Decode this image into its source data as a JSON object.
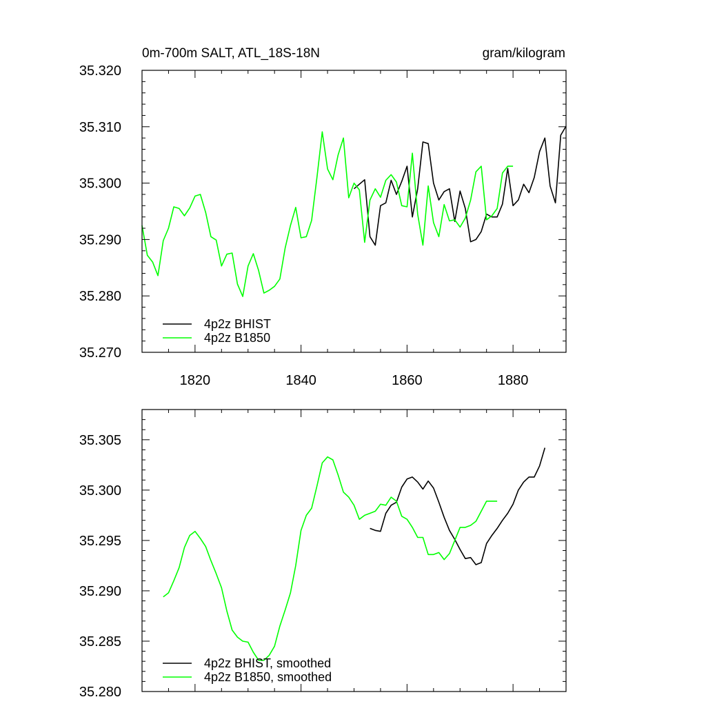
{
  "header": {
    "left": "0m-700m SALT, ATL_18S-18N",
    "right": "gram/kilogram"
  },
  "colors": {
    "bhist": "#000000",
    "b1850": "#00ff00",
    "axis": "#000000"
  },
  "chart_data": [
    {
      "type": "line",
      "title": "0m-700m SALT, ATL_18S-18N",
      "units": "gram/kilogram",
      "xlim": [
        1810,
        1890
      ],
      "ylim": [
        35.27,
        35.32
      ],
      "x_ticks": [
        1820,
        1840,
        1860,
        1880
      ],
      "x_tick_labels": [
        "1820",
        "1840",
        "1860",
        "1880"
      ],
      "y_ticks": [
        35.27,
        35.28,
        35.29,
        35.3,
        35.31,
        35.32
      ],
      "y_tick_labels": [
        "35.270",
        "35.280",
        "35.290",
        "35.300",
        "35.310",
        "35.320"
      ],
      "grid": false,
      "legend_position": "bottom-left",
      "series": [
        {
          "name": "4p2z BHIST",
          "color": "#000000",
          "x": [
            1850,
            1851,
            1852,
            1853,
            1854,
            1855,
            1856,
            1857,
            1858,
            1859,
            1860,
            1861,
            1862,
            1863,
            1864,
            1865,
            1866,
            1867,
            1868,
            1869,
            1870,
            1871,
            1872,
            1873,
            1874,
            1875,
            1876,
            1877,
            1878,
            1879,
            1880,
            1881,
            1882,
            1883,
            1884,
            1885,
            1886,
            1887,
            1888,
            1889,
            1890
          ],
          "y": [
            35.299,
            35.2998,
            35.3006,
            35.2905,
            35.289,
            35.296,
            35.2965,
            35.3005,
            35.298,
            35.3003,
            35.303,
            35.294,
            35.299,
            35.3073,
            35.307,
            35.3,
            35.297,
            35.2985,
            35.299,
            35.2932,
            35.2986,
            35.2955,
            35.2896,
            35.29,
            35.2914,
            35.2945,
            35.294,
            35.294,
            35.2963,
            35.3026,
            35.296,
            35.297,
            35.2998,
            35.2983,
            35.301,
            35.3056,
            35.308,
            35.2995,
            35.2965,
            35.3085,
            35.3101
          ]
        },
        {
          "name": "4p2z B1850",
          "color": "#00ff00",
          "x": [
            1810,
            1811,
            1812,
            1813,
            1814,
            1815,
            1816,
            1817,
            1818,
            1819,
            1820,
            1821,
            1822,
            1823,
            1824,
            1825,
            1826,
            1827,
            1828,
            1829,
            1830,
            1831,
            1832,
            1833,
            1834,
            1835,
            1836,
            1837,
            1838,
            1839,
            1840,
            1841,
            1842,
            1843,
            1844,
            1845,
            1846,
            1847,
            1848,
            1849,
            1850,
            1851,
            1852,
            1853,
            1854,
            1855,
            1856,
            1857,
            1858,
            1859,
            1860,
            1861,
            1862,
            1863,
            1864,
            1865,
            1866,
            1867,
            1868,
            1869,
            1870,
            1871,
            1872,
            1873,
            1874,
            1875,
            1876,
            1877,
            1878,
            1879,
            1880
          ],
          "y": [
            35.2925,
            35.2872,
            35.286,
            35.2836,
            35.2898,
            35.292,
            35.2958,
            35.2955,
            35.2942,
            35.2956,
            35.2977,
            35.298,
            35.2948,
            35.2905,
            35.2899,
            35.2853,
            35.2874,
            35.2876,
            35.2821,
            35.2799,
            35.2853,
            35.2875,
            35.2845,
            35.2805,
            35.281,
            35.2817,
            35.283,
            35.2885,
            35.2925,
            35.2957,
            35.2903,
            35.2905,
            35.2934,
            35.301,
            35.3091,
            35.3025,
            35.3006,
            35.305,
            35.308,
            35.2974,
            35.3,
            35.2988,
            35.2895,
            35.297,
            35.299,
            35.2975,
            35.3005,
            35.3015,
            35.3002,
            35.296,
            35.2958,
            35.3053,
            35.2945,
            35.289,
            35.2995,
            35.293,
            35.2905,
            35.2962,
            35.2933,
            35.2935,
            35.2922,
            35.2938,
            35.297,
            35.302,
            35.303,
            35.2935,
            35.2942,
            35.2955,
            35.3018,
            35.303,
            35.303
          ]
        }
      ]
    },
    {
      "type": "line",
      "xlim": [
        1810,
        1890
      ],
      "ylim": [
        35.28,
        35.308
      ],
      "x_ticks": [
        1820,
        1840,
        1860,
        1880
      ],
      "x_tick_labels": [],
      "y_ticks": [
        35.28,
        35.285,
        35.29,
        35.295,
        35.3,
        35.305
      ],
      "y_tick_labels": [
        "35.280",
        "35.285",
        "35.290",
        "35.295",
        "35.300",
        "35.305"
      ],
      "grid": false,
      "legend_position": "bottom-left",
      "series": [
        {
          "name": "4p2z BHIST, smoothed",
          "color": "#000000",
          "x": [
            1853,
            1854,
            1855,
            1856,
            1857,
            1858,
            1859,
            1860,
            1861,
            1862,
            1863,
            1864,
            1865,
            1866,
            1867,
            1868,
            1869,
            1870,
            1871,
            1872,
            1873,
            1874,
            1875,
            1876,
            1877,
            1878,
            1879,
            1880,
            1881,
            1882,
            1883,
            1884,
            1885,
            1886
          ],
          "y": [
            35.2962,
            35.296,
            35.2959,
            35.2977,
            35.2985,
            35.2988,
            35.3003,
            35.3011,
            35.3013,
            35.3008,
            35.3001,
            35.3009,
            35.3002,
            35.2988,
            35.2973,
            35.296,
            35.2951,
            35.2941,
            35.2932,
            35.2933,
            35.2926,
            35.2928,
            35.2947,
            35.2955,
            35.2962,
            35.297,
            35.2977,
            35.2986,
            35.3,
            35.3008,
            35.3013,
            35.3013,
            35.3024,
            35.3042
          ]
        },
        {
          "name": "4p2z B1850, smoothed",
          "color": "#00ff00",
          "x": [
            1814,
            1815,
            1816,
            1817,
            1818,
            1819,
            1820,
            1821,
            1822,
            1823,
            1824,
            1825,
            1826,
            1827,
            1828,
            1829,
            1830,
            1831,
            1832,
            1833,
            1834,
            1835,
            1836,
            1837,
            1838,
            1839,
            1840,
            1841,
            1842,
            1843,
            1844,
            1845,
            1846,
            1847,
            1848,
            1849,
            1850,
            1851,
            1852,
            1853,
            1854,
            1855,
            1856,
            1857,
            1858,
            1859,
            1860,
            1861,
            1862,
            1863,
            1864,
            1865,
            1866,
            1867,
            1868,
            1869,
            1870,
            1871,
            1872,
            1873,
            1874,
            1875,
            1876,
            1877
          ],
          "y": [
            35.2894,
            35.2898,
            35.291,
            35.2923,
            35.2943,
            35.2955,
            35.2959,
            35.2952,
            35.2944,
            35.293,
            35.2917,
            35.2903,
            35.288,
            35.2861,
            35.2854,
            35.285,
            35.2849,
            35.2839,
            35.2831,
            35.2831,
            35.2836,
            35.2845,
            35.2865,
            35.2881,
            35.2898,
            35.2925,
            35.296,
            35.2975,
            35.2982,
            35.3004,
            35.3027,
            35.3033,
            35.303,
            35.3015,
            35.2998,
            35.2993,
            35.2985,
            35.2971,
            35.2975,
            35.2977,
            35.2979,
            35.2986,
            35.2985,
            35.2993,
            35.2989,
            35.2974,
            35.2971,
            35.2963,
            35.2953,
            35.2953,
            35.2936,
            35.2936,
            35.2938,
            35.2931,
            35.2937,
            35.295,
            35.2963,
            35.2963,
            35.2965,
            35.2969,
            35.2979,
            35.2989,
            35.2989,
            35.2989
          ]
        }
      ]
    }
  ]
}
